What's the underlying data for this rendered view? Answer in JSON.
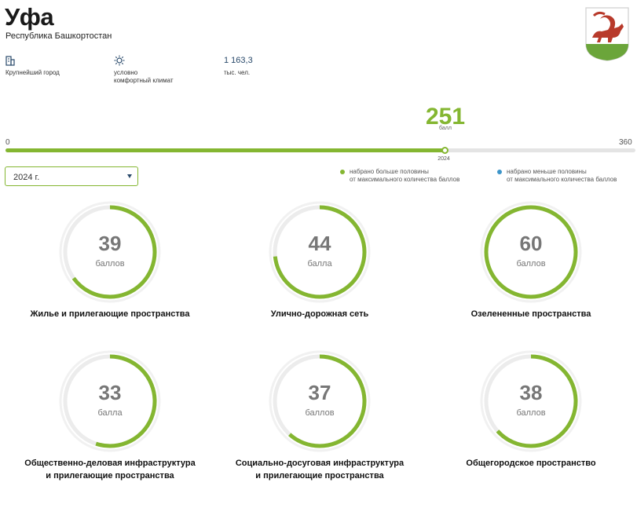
{
  "header": {
    "city": "Уфа",
    "region": "Республика Башкортостан"
  },
  "facts": [
    {
      "icon": "building-icon",
      "value": "",
      "label_lines": [
        "Крупнейший город"
      ]
    },
    {
      "icon": "sun-icon",
      "value": "",
      "label_lines": [
        "условно",
        "комфортный климат"
      ]
    },
    {
      "icon": "",
      "value": "1 163,3",
      "label_lines": [
        "тыс. чел."
      ]
    }
  ],
  "score": {
    "total": "251",
    "unit": "балл",
    "min": "0",
    "max": "360",
    "year_marker": "2024",
    "value": 251,
    "max_value": 360
  },
  "year_select": {
    "selected": "2024 г."
  },
  "legend": [
    {
      "color": "#84b631",
      "lines": [
        "набрано больше половины",
        "от максимального количества баллов"
      ]
    },
    {
      "color": "#3d95c9",
      "lines": [
        "набрано меньше половины",
        "от максимального количества баллов"
      ]
    }
  ],
  "categories": [
    {
      "score": "39",
      "unit": "баллов",
      "value": 39,
      "max": 60,
      "label_lines": [
        "Жилье и прилегающие пространства"
      ]
    },
    {
      "score": "44",
      "unit": "балла",
      "value": 44,
      "max": 60,
      "label_lines": [
        "Улично-дорожная сеть"
      ]
    },
    {
      "score": "60",
      "unit": "баллов",
      "value": 60,
      "max": 60,
      "label_lines": [
        "Озелененные пространства"
      ]
    },
    {
      "score": "33",
      "unit": "балла",
      "value": 33,
      "max": 60,
      "label_lines": [
        "Общественно-деловая инфраструктура",
        "и прилегающие пространства"
      ]
    },
    {
      "score": "37",
      "unit": "баллов",
      "value": 37,
      "max": 60,
      "label_lines": [
        "Социально-досуговая инфраструктура",
        "и прилегающие пространства"
      ]
    },
    {
      "score": "38",
      "unit": "баллов",
      "value": 38,
      "max": 60,
      "label_lines": [
        "Общегородское пространство"
      ]
    }
  ],
  "colors": {
    "accent": "#84b631",
    "secondary": "#3d95c9",
    "track": "#ececec"
  }
}
